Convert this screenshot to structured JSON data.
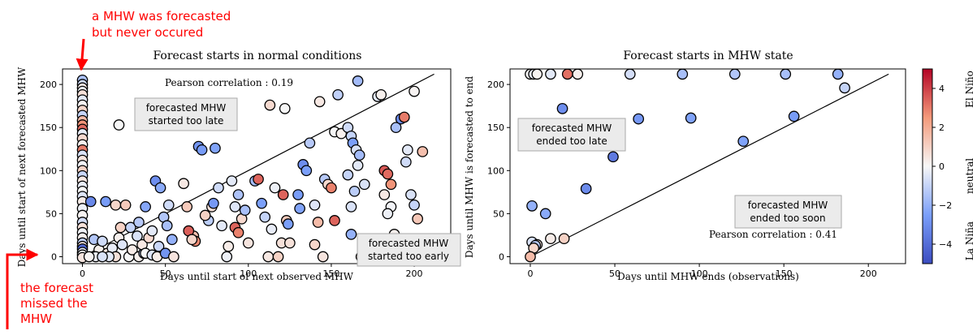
{
  "annotations": {
    "never_occurred": [
      "a MHW was forecasted",
      "but never occured"
    ],
    "missed": [
      "the forecast",
      "missed the",
      "MHW"
    ],
    "color": "#ff0000"
  },
  "colorbar": {
    "cmap": "coolwarm",
    "range": [
      -5,
      5
    ],
    "ticks": [
      -4,
      -2,
      0,
      2,
      4
    ],
    "tick_labels": [
      "−4",
      "−2",
      "0",
      "2",
      "4"
    ],
    "labels": [
      "El Niño",
      "neutral",
      "La Niña"
    ]
  },
  "chart_data": [
    {
      "type": "scatter",
      "title": "Forecast starts in normal conditions",
      "xlabel": "Days until start of next observed MHW",
      "ylabel": "Days until start of next forecasted MHW",
      "xlim": [
        -12,
        222
      ],
      "ylim": [
        -8,
        218
      ],
      "xticks": [
        0,
        50,
        100,
        150,
        200
      ],
      "yticks": [
        0,
        50,
        100,
        150,
        200
      ],
      "diagonal": [
        0,
        212
      ],
      "pearson": "Pearson correlation : 0.19",
      "boxes": [
        {
          "text": [
            "forecasted MHW",
            "started too late"
          ]
        },
        {
          "text": [
            "forecasted MHW",
            "started too early"
          ]
        }
      ],
      "points": [
        [
          0,
          205,
          -1.5
        ],
        [
          0,
          200,
          -0.8
        ],
        [
          0,
          196,
          0.3
        ],
        [
          0,
          192,
          -0.2
        ],
        [
          0,
          188,
          0.6
        ],
        [
          0,
          182,
          -0.4
        ],
        [
          0,
          176,
          0.1
        ],
        [
          0,
          170,
          0.9
        ],
        [
          0,
          164,
          -1.0
        ],
        [
          0,
          158,
          1.6
        ],
        [
          0,
          153,
          2.6
        ],
        [
          0,
          148,
          3.3
        ],
        [
          0,
          143,
          -0.3
        ],
        [
          0,
          137,
          0.8
        ],
        [
          0,
          130,
          0.2
        ],
        [
          0,
          124,
          3.0
        ],
        [
          0,
          118,
          -0.6
        ],
        [
          0,
          112,
          0.5
        ],
        [
          0,
          106,
          -0.1
        ],
        [
          0,
          100,
          1.0
        ],
        [
          0,
          94,
          -0.9
        ],
        [
          0,
          88,
          0.4
        ],
        [
          0,
          82,
          -0.3
        ],
        [
          0,
          76,
          0.0
        ],
        [
          0,
          70,
          -0.5
        ],
        [
          0,
          64,
          0.3
        ],
        [
          0,
          56,
          -0.2
        ],
        [
          0,
          48,
          0.1
        ],
        [
          0,
          40,
          -0.7
        ],
        [
          0,
          34,
          0.6
        ],
        [
          0,
          28,
          -0.1
        ],
        [
          0,
          22,
          0.2
        ],
        [
          0,
          16,
          -1.1
        ],
        [
          0,
          12,
          0.4
        ],
        [
          0,
          9,
          -4.2
        ],
        [
          0,
          5,
          -0.3
        ],
        [
          0,
          2,
          0.0
        ],
        [
          0,
          -1,
          0.5
        ],
        [
          5,
          64,
          -3.2
        ],
        [
          14,
          64,
          -2.6
        ],
        [
          7,
          20,
          -1.4
        ],
        [
          10,
          8,
          0.2
        ],
        [
          12,
          18,
          -0.8
        ],
        [
          15,
          4,
          0.4
        ],
        [
          18,
          10,
          -0.3
        ],
        [
          20,
          0,
          0.6
        ],
        [
          22,
          22,
          0.2
        ],
        [
          24,
          14,
          -0.5
        ],
        [
          28,
          0,
          0.0
        ],
        [
          30,
          8,
          0.3
        ],
        [
          8,
          0,
          -0.2
        ],
        [
          4,
          0,
          0.1
        ],
        [
          16,
          0,
          -0.4
        ],
        [
          12,
          0,
          -0.6
        ],
        [
          34,
          0,
          0.2
        ],
        [
          37,
          4,
          -1.2
        ],
        [
          36,
          14,
          0.4
        ],
        [
          38,
          4,
          0.0
        ],
        [
          42,
          2,
          -0.5
        ],
        [
          45,
          0,
          0.3
        ],
        [
          20,
          60,
          0.9
        ],
        [
          26,
          60,
          1.2
        ],
        [
          23,
          34,
          1.0
        ],
        [
          29,
          34,
          -1.0
        ],
        [
          33,
          24,
          -0.6
        ],
        [
          34,
          40,
          -1.3
        ],
        [
          38,
          58,
          -2.3
        ],
        [
          40,
          22,
          0.8
        ],
        [
          44,
          88,
          -3.0
        ],
        [
          47,
          80,
          -2.2
        ],
        [
          49,
          46,
          -1.4
        ],
        [
          52,
          60,
          -0.8
        ],
        [
          51,
          36,
          -1.6
        ],
        [
          54,
          20,
          -2.0
        ],
        [
          46,
          12,
          -0.9
        ],
        [
          42,
          30,
          -0.4
        ],
        [
          50,
          4,
          -2.8
        ],
        [
          55,
          0,
          0.5
        ],
        [
          22,
          153,
          0.0
        ],
        [
          61,
          85,
          0.4
        ],
        [
          63,
          58,
          1.2
        ],
        [
          67,
          24,
          1.5
        ],
        [
          68,
          18,
          2.8
        ],
        [
          64,
          30,
          3.5
        ],
        [
          66,
          20,
          0.9
        ],
        [
          70,
          128,
          -2.8
        ],
        [
          72,
          124,
          -2.6
        ],
        [
          76,
          42,
          -1.2
        ],
        [
          78,
          58,
          0.6
        ],
        [
          74,
          48,
          1.0
        ],
        [
          80,
          126,
          -2.4
        ],
        [
          79,
          62,
          -2.7
        ],
        [
          82,
          80,
          -0.8
        ],
        [
          87,
          0,
          -0.2
        ],
        [
          84,
          36,
          -0.4
        ],
        [
          88,
          12,
          0.3
        ],
        [
          90,
          88,
          -0.4
        ],
        [
          92,
          58,
          -0.5
        ],
        [
          94,
          72,
          -1.5
        ],
        [
          92,
          34,
          3.4
        ],
        [
          94,
          28,
          2.9
        ],
        [
          96,
          44,
          0.8
        ],
        [
          100,
          16,
          0.5
        ],
        [
          98,
          54,
          -1.6
        ],
        [
          104,
          88,
          -1.7
        ],
        [
          106,
          90,
          3.4
        ],
        [
          108,
          62,
          -2.5
        ],
        [
          110,
          46,
          -1.0
        ],
        [
          114,
          32,
          -0.3
        ],
        [
          116,
          80,
          -0.2
        ],
        [
          112,
          0,
          0.4
        ],
        [
          118,
          0,
          1.0
        ],
        [
          120,
          16,
          0.6
        ],
        [
          121,
          72,
          3.4
        ],
        [
          123,
          42,
          1.2
        ],
        [
          124,
          38,
          -2.5
        ],
        [
          125,
          16,
          0.6
        ],
        [
          113,
          176,
          0.8
        ],
        [
          122,
          172,
          0.0
        ],
        [
          130,
          72,
          -2.6
        ],
        [
          131,
          56,
          -2.4
        ],
        [
          133,
          107,
          -3.0
        ],
        [
          135,
          100,
          -2.5
        ],
        [
          137,
          132,
          -1.3
        ],
        [
          140,
          60,
          -0.5
        ],
        [
          142,
          40,
          1.6
        ],
        [
          140,
          14,
          0.9
        ],
        [
          145,
          0,
          0.5
        ],
        [
          146,
          90,
          -1.3
        ],
        [
          148,
          84,
          0.8
        ],
        [
          150,
          80,
          2.9
        ],
        [
          152,
          42,
          3.4
        ],
        [
          143,
          180,
          0.4
        ],
        [
          154,
          188,
          -1.1
        ],
        [
          152,
          145,
          0.0
        ],
        [
          156,
          143,
          0.2
        ],
        [
          160,
          150,
          -0.8
        ],
        [
          162,
          140,
          -1.0
        ],
        [
          163,
          132,
          -2.5
        ],
        [
          165,
          124,
          -0.6
        ],
        [
          167,
          118,
          -1.7
        ],
        [
          166,
          106,
          -0.4
        ],
        [
          160,
          95,
          -1.0
        ],
        [
          164,
          76,
          -1.2
        ],
        [
          162,
          58,
          -0.6
        ],
        [
          162,
          26,
          -2.0
        ],
        [
          166,
          204,
          -1.7
        ],
        [
          170,
          84,
          -0.6
        ],
        [
          168,
          0,
          1.0
        ],
        [
          174,
          0,
          0.8
        ],
        [
          178,
          186,
          -0.4
        ],
        [
          180,
          188,
          0.2
        ],
        [
          182,
          100,
          3.6
        ],
        [
          184,
          96,
          3.3
        ],
        [
          186,
          84,
          2.6
        ],
        [
          182,
          72,
          0.4
        ],
        [
          186,
          58,
          -0.1
        ],
        [
          184,
          50,
          -0.2
        ],
        [
          188,
          26,
          0.2
        ],
        [
          190,
          0,
          0.8
        ],
        [
          186,
          0,
          0.6
        ],
        [
          192,
          0,
          1.0
        ],
        [
          198,
          0,
          0.0
        ],
        [
          189,
          150,
          -1.6
        ],
        [
          192,
          160,
          -3.0
        ],
        [
          194,
          162,
          3.0
        ],
        [
          196,
          124,
          -0.4
        ],
        [
          195,
          110,
          -0.8
        ],
        [
          198,
          72,
          -0.6
        ],
        [
          200,
          60,
          -1.0
        ],
        [
          202,
          44,
          1.3
        ],
        [
          205,
          122,
          1.5
        ],
        [
          200,
          192,
          0.1
        ]
      ]
    },
    {
      "type": "scatter",
      "title": "Forecast starts in MHW state",
      "xlabel": "Days until MHW ends (observations)",
      "ylabel": "Days until MHW is forecasted to end",
      "xlim": [
        -12,
        222
      ],
      "ylim": [
        -8,
        218
      ],
      "xticks": [
        0,
        50,
        100,
        150,
        200
      ],
      "yticks": [
        0,
        50,
        100,
        150,
        200
      ],
      "diagonal": [
        0,
        212
      ],
      "pearson": "Pearson correlation : 0.41",
      "boxes": [
        {
          "text": [
            "forecasted MHW",
            "ended too late"
          ]
        },
        {
          "text": [
            "forecasted MHW",
            "ended too soon"
          ]
        }
      ],
      "points": [
        [
          0,
          212,
          0.0
        ],
        [
          2,
          212,
          -0.3
        ],
        [
          4,
          212,
          0.1
        ],
        [
          12,
          212,
          -0.4
        ],
        [
          22,
          212,
          3.2
        ],
        [
          28,
          212,
          0.2
        ],
        [
          59,
          212,
          -0.7
        ],
        [
          90,
          212,
          -1.6
        ],
        [
          121,
          212,
          -1.4
        ],
        [
          151,
          212,
          -1.6
        ],
        [
          182,
          212,
          -2.0
        ],
        [
          186,
          196,
          -1.0
        ],
        [
          19,
          172,
          -3.0
        ],
        [
          64,
          160,
          -2.7
        ],
        [
          95,
          161,
          -2.4
        ],
        [
          156,
          163,
          -2.6
        ],
        [
          126,
          134,
          -2.4
        ],
        [
          49,
          116,
          -3.6
        ],
        [
          33,
          79,
          -3.1
        ],
        [
          9,
          50,
          -2.2
        ],
        [
          1,
          59,
          -2.0
        ],
        [
          1,
          17,
          -0.6
        ],
        [
          4,
          14,
          0.5
        ],
        [
          3,
          13,
          -1.3
        ],
        [
          12,
          21,
          0.3
        ],
        [
          20,
          21,
          1.0
        ],
        [
          2,
          10,
          0.9
        ],
        [
          0,
          0,
          1.6
        ]
      ]
    }
  ]
}
